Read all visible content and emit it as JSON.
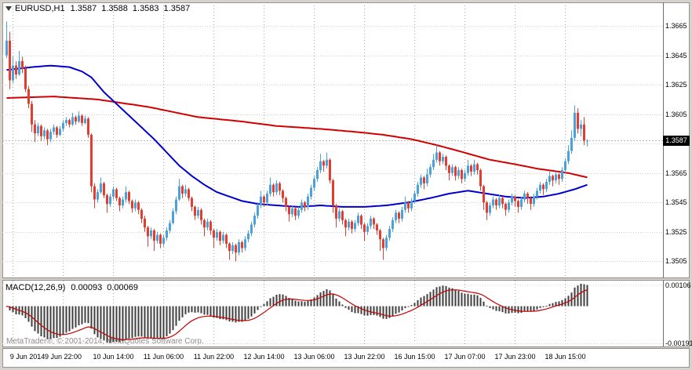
{
  "quote_bar": {
    "symbol": "EURUSD,H1",
    "open": "1.3587",
    "high": "1.3588",
    "low": "1.3583",
    "close": "1.3587"
  },
  "indicator_label": {
    "name": "MACD(12,26,9)",
    "main_value": "0.00093",
    "signal_value": "0.00069"
  },
  "watermark": "MetaTrader®, © 2001-2014, MetaQuotes Software Corp.",
  "current_price_tag": "1.3587",
  "colors": {
    "background": "#ffffff",
    "frame": "#d6d3ce",
    "grid_vertical": "#a8a8a8",
    "grid_horizontal": "#d0d0d0",
    "candle_up": "#4aa2d9",
    "candle_down": "#e43d30",
    "ma_slow": "#d10000",
    "ma_fast": "#0000cd",
    "macd_histogram": "#3f3f3f",
    "macd_signal": "#c40000",
    "current_price_line": "#b9b9b9",
    "price_tag_bg": "#000000",
    "price_tag_text": "#ffffff",
    "axis_text": "#000000",
    "watermark_text": "#8d8d8d"
  },
  "chart_data": {
    "type": "candlestick",
    "symbol": "EURUSD",
    "timeframe": "H1",
    "price_base": 1.3,
    "pip_size": 0.0001,
    "price_ylim": [
      1.3494,
      1.3681
    ],
    "current_price": 1.3587,
    "y_ticks": [
      "1.3665",
      "1.3645",
      "1.3625",
      "1.3605",
      "1.3585",
      "1.3565",
      "1.3545",
      "1.3525",
      "1.3505"
    ],
    "x_ticks": [
      {
        "text": "9 Jun 2014",
        "bar": 2
      },
      {
        "text": "9 Jun 22:00",
        "bar": 18
      },
      {
        "text": "10 Jun 14:00",
        "bar": 34
      },
      {
        "text": "11 Jun 06:00",
        "bar": 50
      },
      {
        "text": "11 Jun 22:00",
        "bar": 66
      },
      {
        "text": "12 Jun 14:00",
        "bar": 82
      },
      {
        "text": "13 Jun 06:00",
        "bar": 98
      },
      {
        "text": "13 Jun 22:00",
        "bar": 114
      },
      {
        "text": "16 Jun 15:00",
        "bar": 130
      },
      {
        "text": "17 Jun 07:00",
        "bar": 146
      },
      {
        "text": "17 Jun 23:00",
        "bar": 162
      },
      {
        "text": "18 Jun 15:00",
        "bar": 178
      }
    ],
    "ohlc_pips": [
      [
        645,
        668,
        643,
        655
      ],
      [
        655,
        661,
        622,
        628
      ],
      [
        628,
        644,
        626,
        638
      ],
      [
        638,
        641,
        629,
        632
      ],
      [
        632,
        648,
        631,
        641
      ],
      [
        641,
        644,
        633,
        636
      ],
      [
        636,
        638,
        620,
        622
      ],
      [
        622,
        624,
        609,
        612
      ],
      [
        612,
        614,
        593,
        598
      ],
      [
        598,
        601,
        586,
        592
      ],
      [
        592,
        599,
        590,
        597
      ],
      [
        597,
        598,
        587,
        590
      ],
      [
        590,
        596,
        588,
        594
      ],
      [
        594,
        595,
        584,
        588
      ],
      [
        588,
        595,
        586,
        593
      ],
      [
        593,
        598,
        591,
        596
      ],
      [
        596,
        597,
        589,
        591
      ],
      [
        591,
        597,
        590,
        595
      ],
      [
        595,
        601,
        593,
        599
      ],
      [
        599,
        603,
        597,
        601
      ],
      [
        601,
        602,
        596,
        598
      ],
      [
        598,
        606,
        597,
        603
      ],
      [
        603,
        604,
        598,
        600
      ],
      [
        600,
        607,
        599,
        604
      ],
      [
        604,
        605,
        597,
        599
      ],
      [
        599,
        604,
        598,
        602
      ],
      [
        602,
        603,
        589,
        591
      ],
      [
        591,
        592,
        552,
        556
      ],
      [
        556,
        558,
        541,
        547
      ],
      [
        547,
        554,
        545,
        552
      ],
      [
        552,
        562,
        551,
        558
      ],
      [
        558,
        559,
        548,
        550
      ],
      [
        550,
        551,
        538,
        544
      ],
      [
        544,
        551,
        542,
        549
      ],
      [
        549,
        556,
        547,
        554
      ],
      [
        554,
        555,
        546,
        548
      ],
      [
        548,
        549,
        539,
        543
      ],
      [
        543,
        549,
        541,
        547
      ],
      [
        547,
        556,
        545,
        552
      ],
      [
        552,
        553,
        544,
        546
      ],
      [
        546,
        547,
        538,
        541
      ],
      [
        541,
        547,
        539,
        545
      ],
      [
        545,
        546,
        537,
        540
      ],
      [
        540,
        541,
        531,
        534
      ],
      [
        534,
        536,
        525,
        528
      ],
      [
        528,
        529,
        515,
        522
      ],
      [
        522,
        528,
        520,
        526
      ],
      [
        526,
        527,
        512,
        519
      ],
      [
        519,
        525,
        517,
        523
      ],
      [
        523,
        524,
        514,
        517
      ],
      [
        517,
        523,
        515,
        521
      ],
      [
        521,
        528,
        519,
        526
      ],
      [
        526,
        533,
        524,
        531
      ],
      [
        531,
        541,
        530,
        539
      ],
      [
        539,
        549,
        537,
        547
      ],
      [
        547,
        561,
        546,
        556
      ],
      [
        556,
        557,
        548,
        551
      ],
      [
        551,
        557,
        549,
        554
      ],
      [
        554,
        555,
        546,
        548
      ],
      [
        548,
        549,
        539,
        542
      ],
      [
        542,
        543,
        533,
        536
      ],
      [
        536,
        542,
        534,
        540
      ],
      [
        540,
        541,
        530,
        533
      ],
      [
        533,
        534,
        522,
        528
      ],
      [
        528,
        534,
        526,
        532
      ],
      [
        532,
        533,
        523,
        526
      ],
      [
        526,
        527,
        514,
        521
      ],
      [
        521,
        527,
        519,
        525
      ],
      [
        525,
        526,
        516,
        519
      ],
      [
        519,
        525,
        517,
        523
      ],
      [
        523,
        524,
        514,
        517
      ],
      [
        517,
        518,
        506,
        512
      ],
      [
        512,
        518,
        510,
        516
      ],
      [
        516,
        517,
        505,
        511
      ],
      [
        511,
        520,
        509,
        518
      ],
      [
        518,
        519,
        511,
        514
      ],
      [
        514,
        522,
        512,
        520
      ],
      [
        520,
        526,
        518,
        524
      ],
      [
        524,
        532,
        522,
        530
      ],
      [
        530,
        538,
        528,
        536
      ],
      [
        536,
        545,
        534,
        543
      ],
      [
        543,
        553,
        541,
        549
      ],
      [
        549,
        550,
        542,
        545
      ],
      [
        545,
        553,
        543,
        551
      ],
      [
        551,
        562,
        549,
        557
      ],
      [
        557,
        558,
        549,
        552
      ],
      [
        552,
        560,
        550,
        558
      ],
      [
        558,
        559,
        550,
        553
      ],
      [
        553,
        554,
        545,
        548
      ],
      [
        548,
        549,
        539,
        542
      ],
      [
        542,
        543,
        532,
        537
      ],
      [
        537,
        543,
        535,
        541
      ],
      [
        541,
        542,
        533,
        536
      ],
      [
        536,
        542,
        534,
        540
      ],
      [
        540,
        547,
        538,
        545
      ],
      [
        545,
        546,
        539,
        542
      ],
      [
        542,
        551,
        540,
        549
      ],
      [
        549,
        557,
        547,
        555
      ],
      [
        555,
        563,
        553,
        561
      ],
      [
        561,
        569,
        559,
        567
      ],
      [
        567,
        578,
        565,
        573
      ],
      [
        573,
        574,
        566,
        570
      ],
      [
        570,
        579,
        568,
        574
      ],
      [
        574,
        575,
        558,
        560
      ],
      [
        560,
        561,
        538,
        543
      ],
      [
        543,
        544,
        528,
        534
      ],
      [
        534,
        541,
        532,
        539
      ],
      [
        539,
        540,
        530,
        533
      ],
      [
        533,
        534,
        522,
        528
      ],
      [
        528,
        534,
        526,
        532
      ],
      [
        532,
        533,
        524,
        527
      ],
      [
        527,
        533,
        525,
        531
      ],
      [
        531,
        538,
        529,
        536
      ],
      [
        536,
        537,
        527,
        530
      ],
      [
        530,
        531,
        519,
        525
      ],
      [
        525,
        531,
        523,
        529
      ],
      [
        529,
        536,
        527,
        534
      ],
      [
        534,
        535,
        527,
        530
      ],
      [
        530,
        531,
        523,
        526
      ],
      [
        526,
        527,
        512,
        520
      ],
      [
        520,
        521,
        506,
        514
      ],
      [
        514,
        523,
        512,
        521
      ],
      [
        521,
        529,
        519,
        527
      ],
      [
        527,
        535,
        525,
        533
      ],
      [
        533,
        540,
        531,
        538
      ],
      [
        538,
        539,
        531,
        534
      ],
      [
        534,
        542,
        532,
        540
      ],
      [
        540,
        549,
        538,
        545
      ],
      [
        545,
        546,
        538,
        541
      ],
      [
        541,
        548,
        539,
        546
      ],
      [
        546,
        553,
        544,
        551
      ],
      [
        551,
        559,
        549,
        557
      ],
      [
        557,
        564,
        555,
        562
      ],
      [
        562,
        563,
        554,
        558
      ],
      [
        558,
        568,
        556,
        564
      ],
      [
        564,
        571,
        562,
        569
      ],
      [
        569,
        578,
        567,
        574
      ],
      [
        574,
        584,
        572,
        579
      ],
      [
        579,
        580,
        570,
        573
      ],
      [
        573,
        578,
        571,
        576
      ],
      [
        576,
        577,
        567,
        570
      ],
      [
        570,
        571,
        560,
        565
      ],
      [
        565,
        571,
        563,
        569
      ],
      [
        569,
        570,
        560,
        563
      ],
      [
        563,
        569,
        561,
        567
      ],
      [
        567,
        568,
        558,
        561
      ],
      [
        561,
        567,
        559,
        565
      ],
      [
        565,
        574,
        563,
        570
      ],
      [
        570,
        571,
        563,
        566
      ],
      [
        566,
        574,
        564,
        571
      ],
      [
        571,
        572,
        564,
        567
      ],
      [
        567,
        568,
        553,
        556
      ],
      [
        556,
        557,
        540,
        545
      ],
      [
        545,
        546,
        533,
        538
      ],
      [
        538,
        545,
        536,
        543
      ],
      [
        543,
        549,
        541,
        547
      ],
      [
        547,
        548,
        540,
        543
      ],
      [
        543,
        550,
        541,
        548
      ],
      [
        548,
        549,
        541,
        544
      ],
      [
        544,
        545,
        536,
        540
      ],
      [
        540,
        547,
        538,
        545
      ],
      [
        545,
        551,
        543,
        549
      ],
      [
        549,
        550,
        542,
        546
      ],
      [
        546,
        547,
        538,
        542
      ],
      [
        542,
        549,
        540,
        547
      ],
      [
        547,
        553,
        545,
        551
      ],
      [
        551,
        552,
        544,
        548
      ],
      [
        548,
        549,
        540,
        544
      ],
      [
        544,
        551,
        542,
        549
      ],
      [
        549,
        555,
        547,
        553
      ],
      [
        553,
        559,
        551,
        557
      ],
      [
        557,
        558,
        550,
        554
      ],
      [
        554,
        561,
        552,
        559
      ],
      [
        559,
        566,
        557,
        563
      ],
      [
        563,
        564,
        556,
        560
      ],
      [
        560,
        566,
        558,
        564
      ],
      [
        564,
        565,
        557,
        561
      ],
      [
        561,
        569,
        559,
        567
      ],
      [
        567,
        575,
        565,
        573
      ],
      [
        573,
        584,
        571,
        580
      ],
      [
        580,
        594,
        578,
        589
      ],
      [
        589,
        611,
        587,
        606
      ],
      [
        606,
        609,
        592,
        595
      ],
      [
        595,
        601,
        590,
        598
      ],
      [
        598,
        603,
        584,
        587
      ],
      [
        587,
        588,
        583,
        587
      ]
    ],
    "overlays": {
      "ma_slow_red_keyframes": [
        [
          0,
          616
        ],
        [
          15,
          617
        ],
        [
          29,
          615
        ],
        [
          45,
          610
        ],
        [
          61,
          603
        ],
        [
          75,
          600
        ],
        [
          86,
          597
        ],
        [
          100,
          595
        ],
        [
          111,
          593
        ],
        [
          120,
          591
        ],
        [
          129,
          588
        ],
        [
          137,
          584
        ],
        [
          144,
          580
        ],
        [
          154,
          574
        ],
        [
          162,
          571
        ],
        [
          169,
          568
        ],
        [
          179,
          565
        ],
        [
          185,
          562
        ]
      ],
      "ma_fast_blue_keyframes": [
        [
          0,
          635
        ],
        [
          8,
          637
        ],
        [
          14,
          638
        ],
        [
          20,
          637
        ],
        [
          24,
          634
        ],
        [
          27,
          630
        ],
        [
          31,
          620
        ],
        [
          35,
          612
        ],
        [
          39,
          604
        ],
        [
          43,
          596
        ],
        [
          47,
          588
        ],
        [
          51,
          579
        ],
        [
          55,
          570
        ],
        [
          59,
          563
        ],
        [
          63,
          557
        ],
        [
          67,
          552
        ],
        [
          71,
          549
        ],
        [
          75,
          546
        ],
        [
          80,
          544
        ],
        [
          86,
          543
        ],
        [
          93,
          542
        ],
        [
          100,
          543
        ],
        [
          107,
          542
        ],
        [
          114,
          542
        ],
        [
          121,
          543
        ],
        [
          128,
          545
        ],
        [
          135,
          548
        ],
        [
          141,
          551
        ],
        [
          147,
          553
        ],
        [
          153,
          551
        ],
        [
          159,
          549
        ],
        [
          165,
          548
        ],
        [
          171,
          549
        ],
        [
          176,
          551
        ],
        [
          181,
          554
        ],
        [
          185,
          557
        ]
      ]
    },
    "indicator": {
      "type": "MACD",
      "fast_ema": 12,
      "slow_ema": 26,
      "signal_period": 9,
      "ylim": [
        -0.00205,
        0.0013
      ],
      "y_ticks": [
        {
          "text": "0.00106",
          "value": 0.00106
        },
        {
          "text": "-0.00191",
          "value": -0.00191
        }
      ],
      "current_main": 0.00093,
      "current_signal": 0.00069
    }
  }
}
